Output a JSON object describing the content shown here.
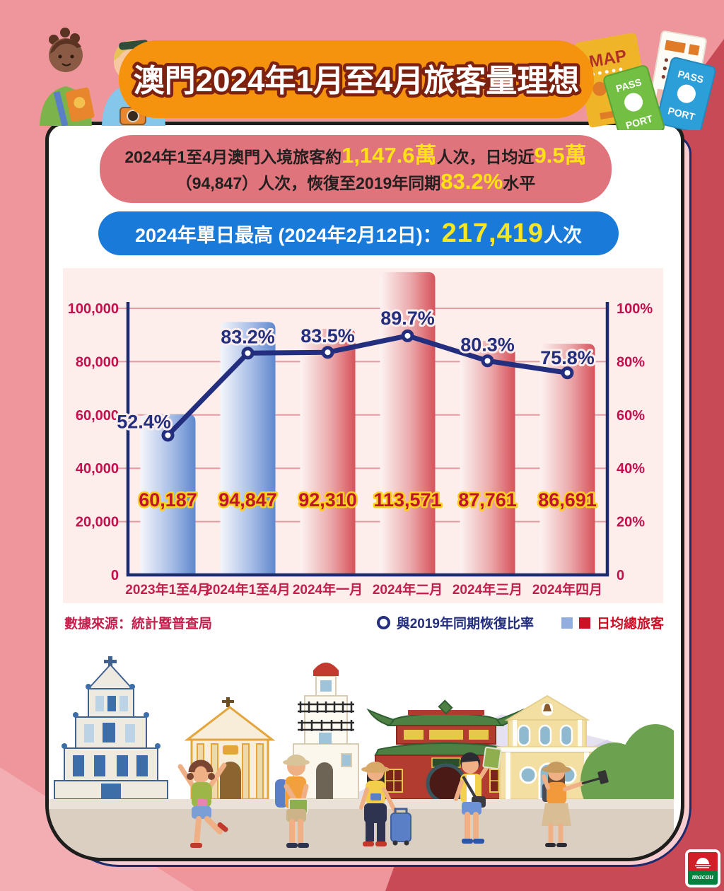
{
  "header": {
    "title": "澳門2024年1月至4月旅客量理想"
  },
  "summary": {
    "line1": [
      {
        "text": "2024年1至4月澳門入境旅客約",
        "style": "dark"
      },
      {
        "text": "1,147.6萬",
        "style": "yellow"
      },
      {
        "text": "人次，日均近",
        "style": "dark"
      },
      {
        "text": "9.5萬",
        "style": "yellow"
      }
    ],
    "line2": [
      {
        "text": "（94,847）人次，恢復至2019年同期",
        "style": "dark"
      },
      {
        "text": "83.2%",
        "style": "yellow"
      },
      {
        "text": "水平",
        "style": "dark"
      }
    ]
  },
  "peak": {
    "segments": [
      {
        "text": "2024年單日最高 (2024年2月12日)：",
        "style": "white"
      },
      {
        "text": "217,419",
        "style": "bigyellow"
      },
      {
        "text": "人次",
        "style": "white"
      }
    ]
  },
  "chart_data": {
    "type": "bar+line",
    "categories": [
      "2023年1至4月",
      "2024年1至4月",
      "2024年一月",
      "2024年二月",
      "2024年三月",
      "2024年四月"
    ],
    "series": [
      {
        "name": "日均總旅客",
        "type": "bar",
        "values": [
          60187,
          94847,
          92310,
          113571,
          87761,
          86691
        ],
        "bar_colors": [
          "blue",
          "blue",
          "red",
          "red",
          "red",
          "red"
        ]
      },
      {
        "name": "與2019年同期恢復比率",
        "type": "line",
        "unit": "%",
        "values": [
          52.4,
          83.2,
          83.5,
          89.7,
          80.3,
          75.8
        ]
      }
    ],
    "left_axis": {
      "max": 100000,
      "ticks": [
        {
          "value": 100000,
          "label": "100,000"
        },
        {
          "value": 80000,
          "label": "80,000"
        },
        {
          "value": 60000,
          "label": "60,000"
        },
        {
          "value": 40000,
          "label": "40,000"
        },
        {
          "value": 20000,
          "label": "20,000"
        },
        {
          "value": 0,
          "label": "0"
        }
      ]
    },
    "right_axis": {
      "max": 100,
      "ticks": [
        {
          "value": 100,
          "label": "100%"
        },
        {
          "value": 80,
          "label": "80%"
        },
        {
          "value": 60,
          "label": "60%"
        },
        {
          "value": 40,
          "label": "40%"
        },
        {
          "value": 20,
          "label": "20%"
        },
        {
          "value": 0,
          "label": "0"
        }
      ]
    },
    "grid": true,
    "legend_position": "bottom-right"
  },
  "legend": {
    "line_label": "與2019年同期恢復比率",
    "bar_label": "日均總旅客"
  },
  "footer": {
    "source": "數據來源：統計暨普查局",
    "logo_text": "macau"
  },
  "decorations": {
    "map_label": "MAP",
    "passport_word_top": "PASS",
    "passport_word_bottom": "PORT"
  },
  "colors": {
    "background_pink": "#ee969c",
    "background_dark_red": "#c84a57",
    "banner_orange": "#f5920e",
    "summary_red": "#e0747c",
    "peak_blue": "#1a7ad9",
    "highlight_yellow": "#ffe214",
    "bar_blue": "#5f88cf",
    "bar_red": "#d6525b",
    "line_navy": "#232e7e",
    "axis_crimson": "#c40f4e"
  }
}
